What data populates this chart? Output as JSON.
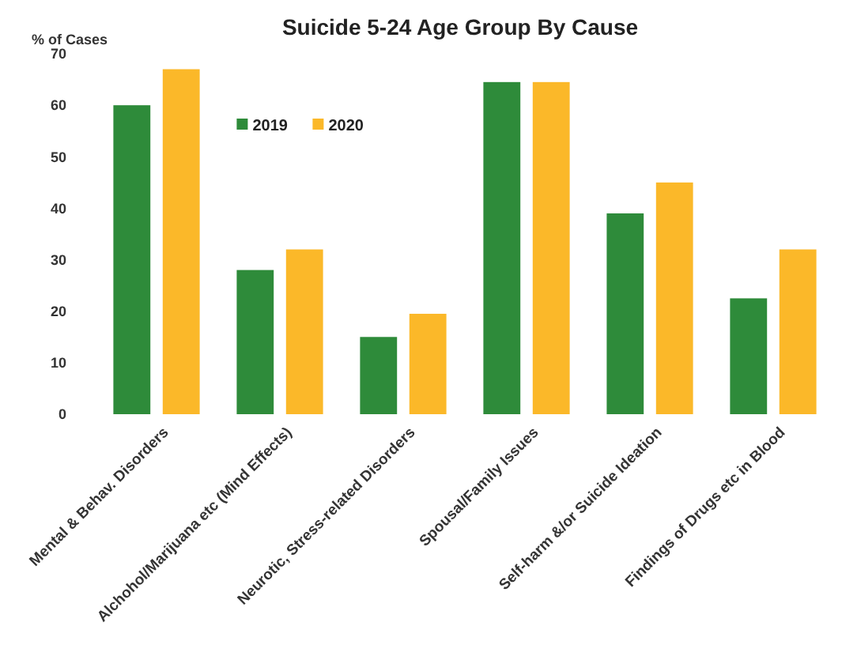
{
  "chart_data": {
    "type": "bar",
    "title": "Suicide 5-24 Age Group By Cause",
    "ylabel": "% of Cases",
    "categories": [
      "Mental & Behav. Disorders",
      "Alchohol/Marijuana etc (Mind Effects)",
      "Neurotic, Stress-related Disorders",
      "Spousal/Family Issues",
      "Self-harm &/or Suicide Ideation",
      "Findings of Drugs etc in Blood"
    ],
    "series": [
      {
        "name": "2019",
        "color": "#2e8b3a",
        "values": [
          60,
          28,
          15,
          64.5,
          39,
          22.5
        ]
      },
      {
        "name": "2020",
        "color": "#fbb829",
        "values": [
          67,
          32,
          19.5,
          64.5,
          45,
          32
        ]
      }
    ],
    "ylim": [
      0,
      70
    ],
    "yticks": [
      0,
      10,
      20,
      30,
      40,
      50,
      60,
      70
    ],
    "grid": false,
    "legend": "top left"
  }
}
